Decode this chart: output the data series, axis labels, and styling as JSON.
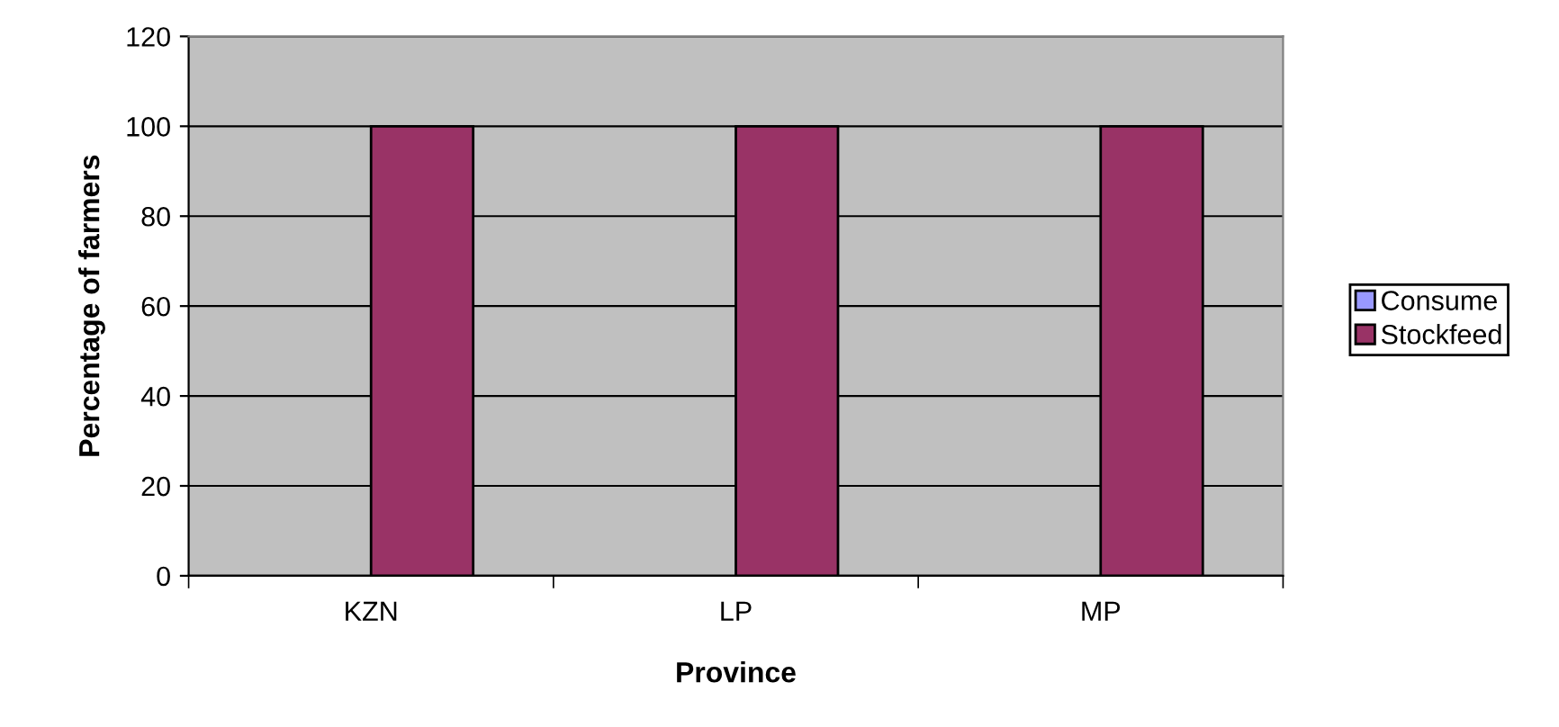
{
  "chart_data": {
    "type": "bar",
    "xlabel": "Province",
    "ylabel": "Percentage of farmers",
    "categories": [
      "KZN",
      "LP",
      "MP"
    ],
    "series": [
      {
        "name": "Consume",
        "color": "#9999ff",
        "values": [
          0,
          0,
          0
        ]
      },
      {
        "name": "Stockfeed",
        "color": "#993366",
        "values": [
          100,
          100,
          100
        ]
      }
    ],
    "ylim": [
      0,
      120
    ],
    "yticks": [
      0,
      20,
      40,
      60,
      80,
      100,
      120
    ],
    "grid": "y",
    "legend": "right"
  }
}
